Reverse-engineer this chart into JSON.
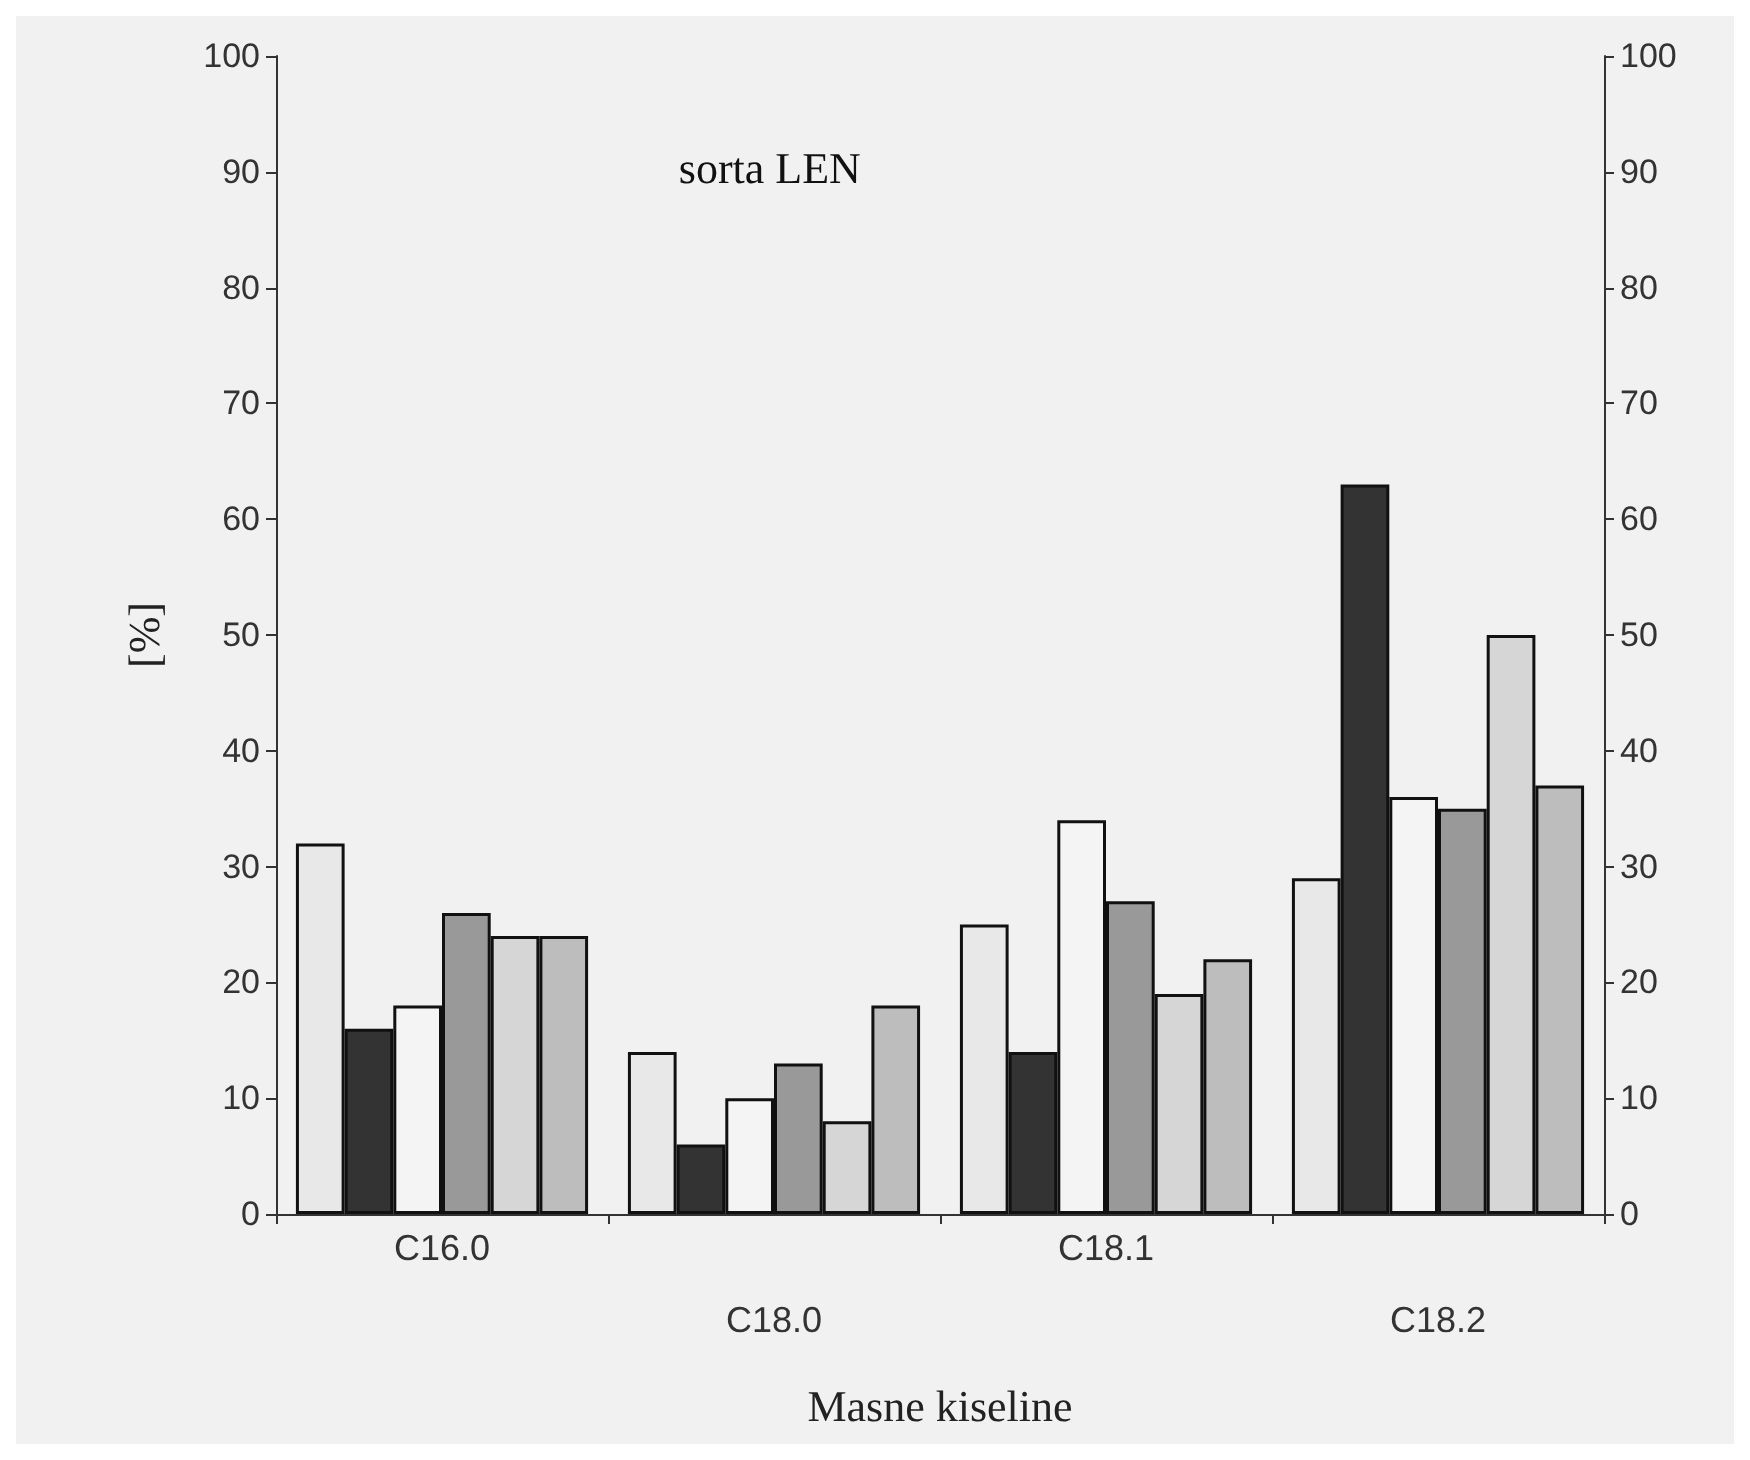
{
  "chart_data": {
    "type": "bar",
    "title": "sorta LEN",
    "xlabel": "Masne kiseline",
    "ylabel": "[%]",
    "categories": [
      "C16.0",
      "C18.0",
      "C18.1",
      "C18.2"
    ],
    "series": [
      {
        "color": "#e8e8e8",
        "values": [
          32,
          14,
          25,
          29
        ]
      },
      {
        "color": "#333333",
        "values": [
          16,
          6,
          14,
          63
        ]
      },
      {
        "color": "#f4f4f4",
        "values": [
          18,
          10,
          34,
          36
        ]
      },
      {
        "color": "#999999",
        "values": [
          26,
          13,
          27,
          35
        ]
      },
      {
        "color": "#d6d6d6",
        "values": [
          24,
          8,
          19,
          50
        ]
      },
      {
        "color": "#bdbdbd",
        "values": [
          24,
          18,
          22,
          37
        ]
      }
    ],
    "ylim": [
      0,
      100
    ],
    "yticks": [
      0,
      10,
      20,
      30,
      40,
      50,
      60,
      70,
      80,
      90,
      100
    ],
    "y2lim": [
      0,
      100
    ],
    "y2ticks": [
      0,
      10,
      20,
      30,
      40,
      50,
      60,
      70,
      80,
      90,
      100
    ],
    "grid": false
  }
}
